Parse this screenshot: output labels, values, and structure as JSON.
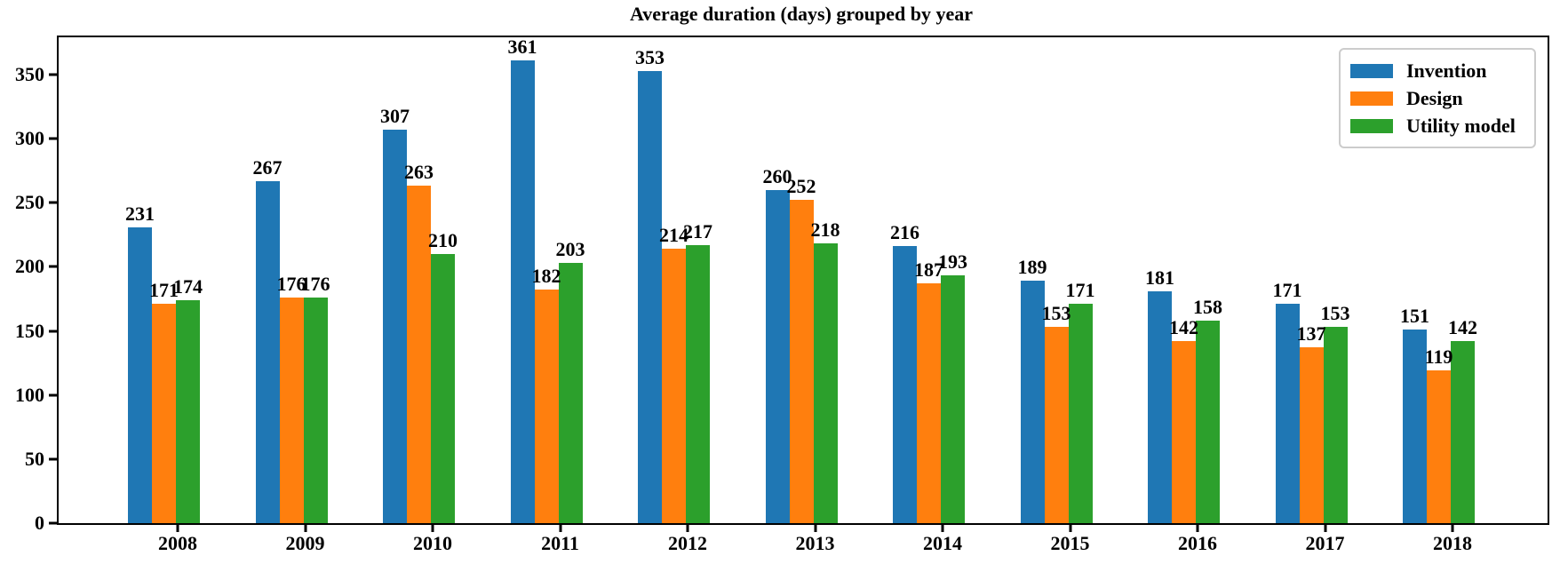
{
  "chart_data": {
    "type": "bar",
    "title": "Average duration (days) grouped by year",
    "categories": [
      "2008",
      "2009",
      "2010",
      "2011",
      "2012",
      "2013",
      "2014",
      "2015",
      "2016",
      "2017",
      "2018"
    ],
    "series": [
      {
        "name": "Invention",
        "color": "#1f77b4",
        "values": [
          231,
          267,
          307,
          361,
          353,
          260,
          216,
          189,
          181,
          171,
          151
        ]
      },
      {
        "name": "Design",
        "color": "#ff7f0e",
        "values": [
          171,
          176,
          263,
          182,
          214,
          252,
          187,
          153,
          142,
          137,
          119
        ]
      },
      {
        "name": "Utility model",
        "color": "#2ca02c",
        "values": [
          174,
          176,
          210,
          203,
          217,
          218,
          193,
          171,
          158,
          153,
          142
        ]
      }
    ],
    "xlabel": "",
    "ylabel": "",
    "ylim": [
      0,
      379
    ],
    "yticks": [
      0,
      50,
      100,
      150,
      200,
      250,
      300,
      350
    ],
    "grid": false,
    "legend_position": "upper right",
    "bar_value_labels": true,
    "axis_color": "#000000",
    "background_color": "#ffffff"
  }
}
